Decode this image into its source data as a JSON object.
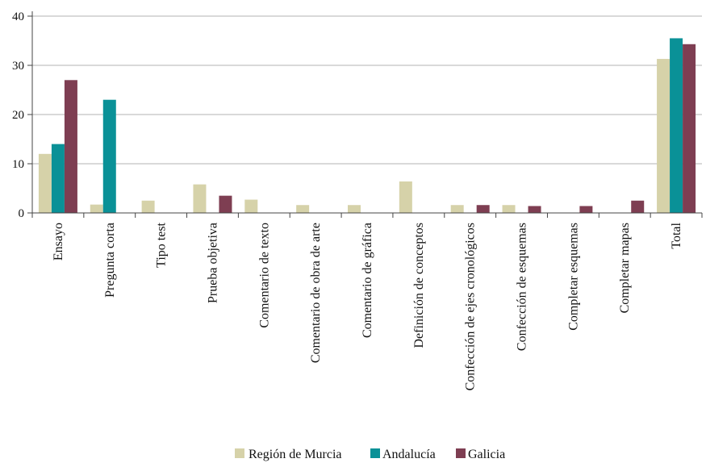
{
  "chart_data": {
    "type": "bar",
    "categories": [
      "Ensayo",
      "Pregunta corta",
      "Tipo test",
      "Prueba objetiva",
      "Comentario de texto",
      "Comentario de obra de arte",
      "Comentario de gráfica",
      "Definición de conceptos",
      "Confección de ejes cronológicos",
      "Confección de esquemas",
      "Completar esquemas",
      "Completar mapas",
      "Total"
    ],
    "series": [
      {
        "name": "Región de Murcia",
        "color": "#d6d2a9",
        "values": [
          12,
          1.7,
          2.5,
          5.8,
          2.7,
          1.6,
          1.6,
          6.4,
          1.6,
          1.6,
          0,
          0,
          31.3
        ]
      },
      {
        "name": "Andalucía",
        "color": "#0a9197",
        "values": [
          14,
          23,
          0,
          0,
          0,
          0,
          0,
          0,
          0,
          0,
          0,
          0,
          35.5
        ]
      },
      {
        "name": "Galicia",
        "color": "#7e3e52",
        "values": [
          27,
          0,
          0,
          3.5,
          0,
          0,
          0,
          0,
          1.6,
          1.4,
          1.4,
          2.5,
          34.3
        ]
      }
    ],
    "yticks": [
      "0",
      "10",
      "20",
      "30",
      "40"
    ],
    "ylim": [
      0,
      40
    ],
    "grid": true,
    "legend": "bottom"
  }
}
